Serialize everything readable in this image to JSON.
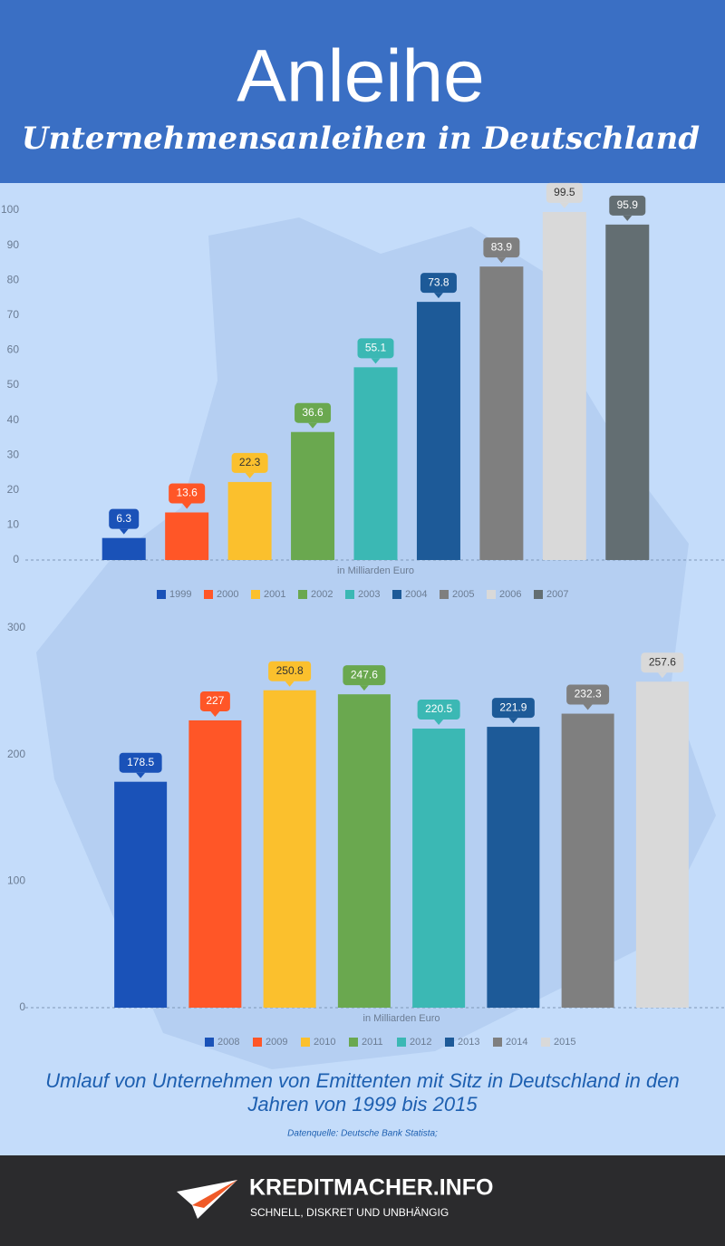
{
  "header": {
    "title": "Anleihe",
    "subtitle": "Unternehmensanleihen in Deutschland"
  },
  "chart_data": [
    {
      "type": "bar",
      "x_label": "in Milliarden Euro",
      "categories": [
        "1999",
        "2000",
        "2001",
        "2002",
        "2003",
        "2004",
        "2005",
        "2006",
        "2007"
      ],
      "values": [
        6.3,
        13.6,
        22.3,
        36.6,
        55.1,
        73.8,
        83.9,
        99.5,
        95.9
      ],
      "colors": [
        "#1a52b8",
        "#ff5627",
        "#fbc02d",
        "#6aa84f",
        "#3bb8b4",
        "#1d5a98",
        "#7f7f7f",
        "#d9d9d9",
        "#636e72"
      ],
      "ylim": [
        0,
        100
      ],
      "yticks": [
        0,
        10,
        20,
        30,
        40,
        50,
        60,
        70,
        80,
        90,
        100
      ],
      "legend": "bottom"
    },
    {
      "type": "bar",
      "x_label": "in Milliarden Euro",
      "categories": [
        "2008",
        "2009",
        "2010",
        "2011",
        "2012",
        "2013",
        "2014",
        "2015"
      ],
      "values": [
        178.5,
        227,
        250.8,
        247.6,
        220.5,
        221.9,
        232.3,
        257.6
      ],
      "colors": [
        "#1a52b8",
        "#ff5627",
        "#fbc02d",
        "#6aa84f",
        "#3bb8b4",
        "#1d5a98",
        "#7f7f7f",
        "#d9d9d9"
      ],
      "ylim": [
        0,
        300
      ],
      "yticks": [
        0,
        100,
        200,
        300
      ],
      "legend": "bottom"
    }
  ],
  "caption": "Umlauf von Unternehmen von Emittenten mit Sitz in Deutschland in den Jahren von 1999 bis 2015",
  "source": "Datenquelle: Deutsche Bank Statista;",
  "footer": {
    "brand": "KREDITMACHER.INFO",
    "tagline": "SCHNELL, DISKRET UND UNBHÄNGIG"
  }
}
